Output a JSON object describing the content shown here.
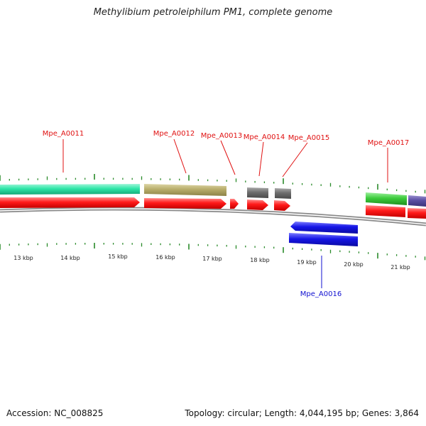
{
  "title": "Methylibium petroleiphilum PM1, complete genome",
  "footer": {
    "accession": "Accession: NC_008825",
    "summary": "Topology: circular; Length: 4,044,195 bp; Genes: 3,864"
  },
  "colors": {
    "teal": "#2ee6a8",
    "khaki": "#b8ad6a",
    "gray": "#6e6e6e",
    "red": "#ff1a1a",
    "green": "#3ccc3c",
    "purple": "#5a4fa3",
    "blue": "#1515e6",
    "tick": "#2a8a2a",
    "label_forward": "#e01010",
    "label_reverse": "#1010d0"
  },
  "scale_labels": [
    "13 kbp",
    "14 kbp",
    "15 kbp",
    "16 kbp",
    "17 kbp",
    "18 kbp",
    "19 kbp",
    "20 kbp",
    "21 kbp"
  ],
  "gene_labels": [
    {
      "text": "Mpe_A0011",
      "strand": "forward"
    },
    {
      "text": "Mpe_A0012",
      "strand": "forward"
    },
    {
      "text": "Mpe_A0013",
      "strand": "forward"
    },
    {
      "text": "Mpe_A0014",
      "strand": "forward"
    },
    {
      "text": "Mpe_A0015",
      "strand": "forward"
    },
    {
      "text": "Mpe_A0017",
      "strand": "forward"
    },
    {
      "text": "Mpe_A0016",
      "strand": "reverse"
    }
  ]
}
